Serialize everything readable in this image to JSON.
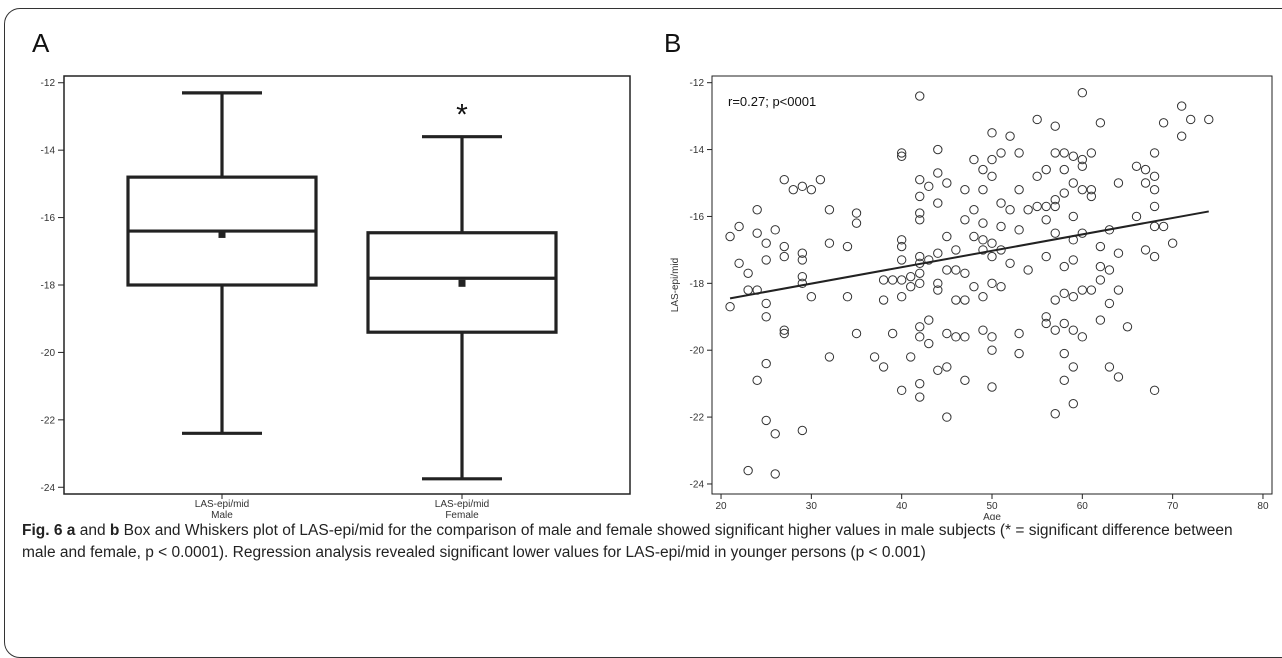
{
  "chart_data": [
    {
      "type": "box",
      "panel": "A",
      "ylim": [
        -24.2,
        -11.8
      ],
      "yticks": [
        -12,
        -14,
        -16,
        -18,
        -20,
        -22,
        -24
      ],
      "significance_marker": "*",
      "categories": [
        {
          "label_line1": "LAS-epi/mid",
          "label_line2": "Male",
          "whisker_low": -22.4,
          "q1": -18.0,
          "median": -16.4,
          "q3": -14.8,
          "whisker_high": -12.3,
          "mean": -16.5
        },
        {
          "label_line1": "LAS-epi/mid",
          "label_line2": "Female",
          "whisker_low": -23.75,
          "q1": -19.4,
          "median": -17.8,
          "q3": -16.45,
          "whisker_high": -13.6,
          "mean": -17.95
        }
      ]
    },
    {
      "type": "scatter",
      "panel": "B",
      "xlabel": "Age",
      "ylabel": "LAS-epi/mid",
      "xlim": [
        19,
        81
      ],
      "ylim": [
        -24.3,
        -11.8
      ],
      "xticks": [
        20,
        30,
        40,
        50,
        60,
        70,
        80
      ],
      "yticks": [
        -12,
        -14,
        -16,
        -18,
        -20,
        -22,
        -24
      ],
      "annotation": "r=0.27; p<0001",
      "regression": {
        "x": [
          21,
          74
        ],
        "y": [
          -18.45,
          -15.85
        ]
      },
      "points": [
        [
          21,
          -18.7
        ],
        [
          21,
          -16.6
        ],
        [
          22,
          -17.4
        ],
        [
          22,
          -16.3
        ],
        [
          23,
          -18.2
        ],
        [
          23,
          -17.7
        ],
        [
          23,
          -23.6
        ],
        [
          24,
          -20.9
        ],
        [
          24,
          -15.8
        ],
        [
          24,
          -18.2
        ],
        [
          24,
          -16.5
        ],
        [
          25,
          -17.3
        ],
        [
          25,
          -16.8
        ],
        [
          25,
          -18.6
        ],
        [
          25,
          -19.0
        ],
        [
          25,
          -20.4
        ],
        [
          25,
          -22.1
        ],
        [
          26,
          -22.5
        ],
        [
          26,
          -23.7
        ],
        [
          26,
          -16.4
        ],
        [
          27,
          -17.2
        ],
        [
          27,
          -16.9
        ],
        [
          27,
          -19.4
        ],
        [
          27,
          -14.9
        ],
        [
          27,
          -19.5
        ],
        [
          28,
          -15.2
        ],
        [
          29,
          -15.1
        ],
        [
          29,
          -17.3
        ],
        [
          29,
          -17.1
        ],
        [
          29,
          -18.0
        ],
        [
          29,
          -22.4
        ],
        [
          29,
          -17.8
        ],
        [
          30,
          -15.2
        ],
        [
          30,
          -18.4
        ],
        [
          31,
          -14.9
        ],
        [
          32,
          -15.8
        ],
        [
          32,
          -16.8
        ],
        [
          32,
          -20.2
        ],
        [
          34,
          -16.9
        ],
        [
          34,
          -18.4
        ],
        [
          35,
          -15.9
        ],
        [
          35,
          -16.2
        ],
        [
          35,
          -19.5
        ],
        [
          37,
          -20.2
        ],
        [
          38,
          -17.9
        ],
        [
          38,
          -18.5
        ],
        [
          38,
          -20.5
        ],
        [
          39,
          -17.9
        ],
        [
          39,
          -19.5
        ],
        [
          40,
          -14.1
        ],
        [
          40,
          -14.2
        ],
        [
          40,
          -16.7
        ],
        [
          40,
          -16.9
        ],
        [
          40,
          -17.3
        ],
        [
          40,
          -17.9
        ],
        [
          40,
          -18.4
        ],
        [
          40,
          -21.2
        ],
        [
          41,
          -17.8
        ],
        [
          41,
          -18.1
        ],
        [
          41,
          -20.2
        ],
        [
          42,
          -12.4
        ],
        [
          42,
          -14.9
        ],
        [
          42,
          -15.4
        ],
        [
          42,
          -15.9
        ],
        [
          42,
          -16.1
        ],
        [
          42,
          -17.2
        ],
        [
          42,
          -17.4
        ],
        [
          42,
          -17.7
        ],
        [
          42,
          -18.0
        ],
        [
          42,
          -19.3
        ],
        [
          42,
          -19.6
        ],
        [
          42,
          -21.0
        ],
        [
          42,
          -21.4
        ],
        [
          43,
          -15.1
        ],
        [
          43,
          -17.3
        ],
        [
          43,
          -19.1
        ],
        [
          43,
          -19.8
        ],
        [
          44,
          -14.0
        ],
        [
          44,
          -14.7
        ],
        [
          44,
          -15.6
        ],
        [
          44,
          -17.1
        ],
        [
          44,
          -18.0
        ],
        [
          44,
          -18.2
        ],
        [
          44,
          -20.6
        ],
        [
          45,
          -15.0
        ],
        [
          45,
          -16.6
        ],
        [
          45,
          -17.6
        ],
        [
          45,
          -19.5
        ],
        [
          45,
          -20.5
        ],
        [
          45,
          -22.0
        ],
        [
          46,
          -17.0
        ],
        [
          46,
          -17.6
        ],
        [
          46,
          -18.5
        ],
        [
          46,
          -19.6
        ],
        [
          47,
          -15.2
        ],
        [
          47,
          -16.1
        ],
        [
          47,
          -17.7
        ],
        [
          47,
          -18.5
        ],
        [
          47,
          -19.6
        ],
        [
          47,
          -20.9
        ],
        [
          48,
          -14.3
        ],
        [
          48,
          -15.8
        ],
        [
          48,
          -16.6
        ],
        [
          48,
          -18.1
        ],
        [
          49,
          -14.6
        ],
        [
          49,
          -15.2
        ],
        [
          49,
          -16.2
        ],
        [
          49,
          -16.7
        ],
        [
          49,
          -17.0
        ],
        [
          49,
          -18.4
        ],
        [
          49,
          -19.4
        ],
        [
          50,
          -13.5
        ],
        [
          50,
          -14.3
        ],
        [
          50,
          -14.8
        ],
        [
          50,
          -16.8
        ],
        [
          50,
          -17.2
        ],
        [
          50,
          -18.0
        ],
        [
          50,
          -19.6
        ],
        [
          50,
          -20.0
        ],
        [
          50,
          -21.1
        ],
        [
          51,
          -14.1
        ],
        [
          51,
          -15.6
        ],
        [
          51,
          -16.3
        ],
        [
          51,
          -17.0
        ],
        [
          51,
          -18.1
        ],
        [
          52,
          -13.6
        ],
        [
          52,
          -15.8
        ],
        [
          52,
          -17.4
        ],
        [
          53,
          -14.1
        ],
        [
          53,
          -15.2
        ],
        [
          53,
          -16.4
        ],
        [
          53,
          -19.5
        ],
        [
          53,
          -20.1
        ],
        [
          54,
          -15.8
        ],
        [
          54,
          -17.6
        ],
        [
          55,
          -13.1
        ],
        [
          55,
          -14.8
        ],
        [
          55,
          -15.7
        ],
        [
          56,
          -14.6
        ],
        [
          56,
          -15.7
        ],
        [
          56,
          -16.1
        ],
        [
          56,
          -17.2
        ],
        [
          56,
          -19.0
        ],
        [
          56,
          -19.2
        ],
        [
          57,
          -13.3
        ],
        [
          57,
          -14.1
        ],
        [
          57,
          -15.5
        ],
        [
          57,
          -15.7
        ],
        [
          57,
          -16.5
        ],
        [
          57,
          -18.5
        ],
        [
          57,
          -19.4
        ],
        [
          57,
          -21.9
        ],
        [
          58,
          -14.1
        ],
        [
          58,
          -14.6
        ],
        [
          58,
          -15.3
        ],
        [
          58,
          -17.5
        ],
        [
          58,
          -18.3
        ],
        [
          58,
          -19.2
        ],
        [
          58,
          -20.1
        ],
        [
          58,
          -20.9
        ],
        [
          59,
          -14.2
        ],
        [
          59,
          -15.0
        ],
        [
          59,
          -16.0
        ],
        [
          59,
          -16.7
        ],
        [
          59,
          -17.3
        ],
        [
          59,
          -18.4
        ],
        [
          59,
          -19.4
        ],
        [
          59,
          -20.5
        ],
        [
          59,
          -21.6
        ],
        [
          60,
          -12.3
        ],
        [
          60,
          -14.3
        ],
        [
          60,
          -14.5
        ],
        [
          60,
          -15.2
        ],
        [
          60,
          -16.5
        ],
        [
          60,
          -18.2
        ],
        [
          60,
          -19.6
        ],
        [
          61,
          -14.1
        ],
        [
          61,
          -15.2
        ],
        [
          61,
          -15.4
        ],
        [
          61,
          -18.2
        ],
        [
          62,
          -13.2
        ],
        [
          62,
          -16.9
        ],
        [
          62,
          -17.5
        ],
        [
          62,
          -17.9
        ],
        [
          62,
          -19.1
        ],
        [
          63,
          -16.4
        ],
        [
          63,
          -17.6
        ],
        [
          63,
          -18.6
        ],
        [
          63,
          -20.5
        ],
        [
          64,
          -15.0
        ],
        [
          64,
          -17.1
        ],
        [
          64,
          -18.2
        ],
        [
          64,
          -20.8
        ],
        [
          65,
          -19.3
        ],
        [
          66,
          -14.5
        ],
        [
          66,
          -16.0
        ],
        [
          67,
          -14.6
        ],
        [
          67,
          -15.0
        ],
        [
          67,
          -17.0
        ],
        [
          68,
          -14.1
        ],
        [
          68,
          -14.8
        ],
        [
          68,
          -15.2
        ],
        [
          68,
          -15.7
        ],
        [
          68,
          -16.3
        ],
        [
          68,
          -17.2
        ],
        [
          68,
          -21.2
        ],
        [
          69,
          -13.2
        ],
        [
          69,
          -16.3
        ],
        [
          70,
          -16.8
        ],
        [
          71,
          -12.7
        ],
        [
          71,
          -13.6
        ],
        [
          72,
          -13.1
        ],
        [
          74,
          -13.1
        ]
      ]
    }
  ],
  "panels": {
    "a_letter": "A",
    "b_letter": "B"
  },
  "caption": {
    "fig_label": "Fig. 6",
    "bold_a": "a",
    "mid_and": " and ",
    "bold_b": "b",
    "text": " Box and Whiskers plot of LAS-epi/mid for the comparison of male and female showed significant higher values in male subjects (* = significant difference between male and female, p < 0.0001). Regression analysis revealed significant lower values for LAS-epi/mid in younger persons (p < 0.001)"
  }
}
